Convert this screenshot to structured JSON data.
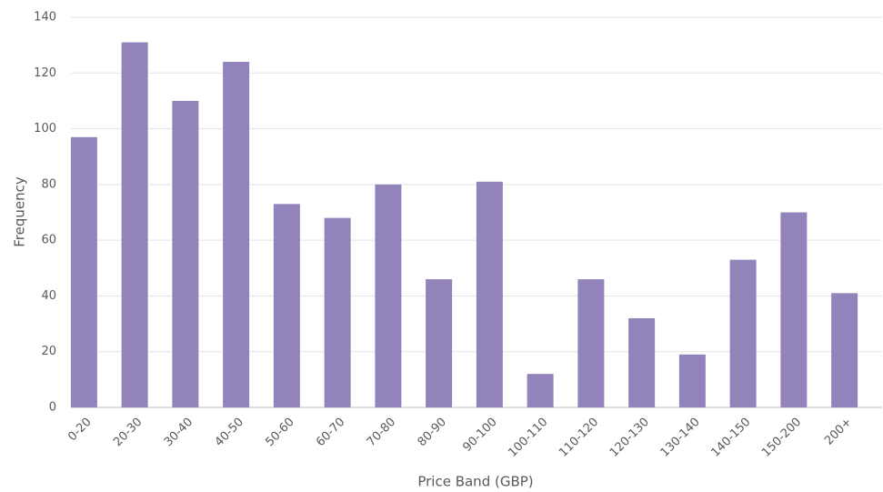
{
  "chart_data": {
    "type": "bar",
    "x_label": "Price Band (GBP)",
    "y_label": "Frequency",
    "categories": [
      "0-20",
      "20-30",
      "30-40",
      "40-50",
      "50-60",
      "60-70",
      "70-80",
      "80-90",
      "90-100",
      "100-110",
      "110-120",
      "120-130",
      "130-140",
      "140-150",
      "150-200",
      "200+"
    ],
    "values": [
      97,
      131,
      110,
      124,
      73,
      68,
      80,
      46,
      81,
      12,
      46,
      32,
      19,
      53,
      70,
      41
    ],
    "color": "#9383bb",
    "ylim": [
      0,
      140
    ],
    "yticks": [
      0,
      20,
      40,
      60,
      80,
      100,
      120,
      140
    ],
    "grid": true
  }
}
